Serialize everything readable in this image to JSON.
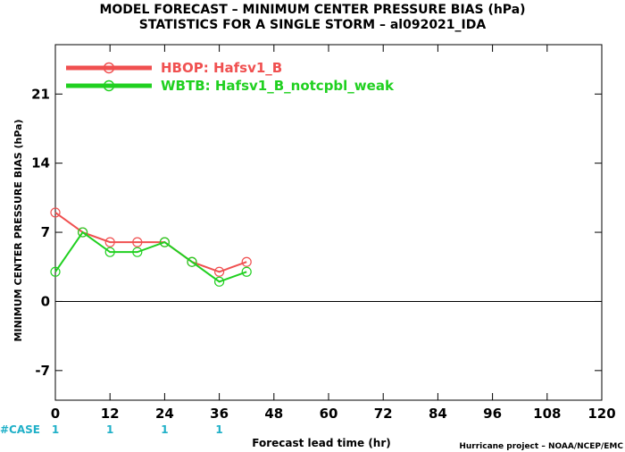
{
  "chart_data": {
    "type": "line",
    "title": "MODEL FORECAST – MINIMUM CENTER PRESSURE BIAS (hPa)",
    "subtitle": "STATISTICS FOR A SINGLE STORM – al092021_IDA",
    "xlabel": "Forecast lead time (hr)",
    "ylabel": "MINIMUM CENTER PRESSURE BIAS (hPa)",
    "xlim": [
      0,
      120
    ],
    "ylim": [
      -10,
      26
    ],
    "x_ticks": [
      0,
      12,
      24,
      36,
      48,
      60,
      72,
      84,
      96,
      108,
      120
    ],
    "y_ticks": [
      -7,
      0,
      7,
      14,
      21
    ],
    "zero_line": true,
    "grid": false,
    "legend_position": "top-left",
    "series": [
      {
        "name": "HBOP: Hafsv1_B",
        "color": "#f05050",
        "x": [
          0,
          6,
          12,
          18,
          24,
          30,
          36,
          42
        ],
        "y": [
          9,
          7,
          6,
          6,
          6,
          4,
          3,
          4
        ]
      },
      {
        "name": "WBTB: Hafsv1_B_notcpbl_weak",
        "color": "#20d020",
        "x": [
          0,
          6,
          12,
          18,
          24,
          30,
          36,
          42
        ],
        "y": [
          3,
          7,
          5,
          5,
          6,
          4,
          2,
          3
        ]
      }
    ],
    "case_label": "#CASE",
    "case_counts": [
      {
        "x": 0,
        "value": "1"
      },
      {
        "x": 12,
        "value": "1"
      },
      {
        "x": 24,
        "value": "1"
      },
      {
        "x": 36,
        "value": "1"
      }
    ],
    "credit": "Hurricane project – NOAA/NCEP/EMC"
  }
}
